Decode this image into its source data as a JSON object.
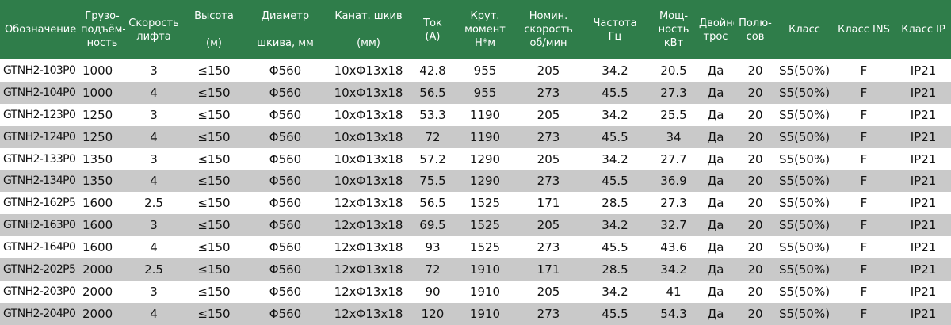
{
  "table": {
    "headers": [
      "Обозначение",
      "Грузо-\nподъём-\nность",
      "Скорость\nлифта",
      "Высота\n\n(м)",
      "Диаметр\n\nшкива, мм",
      "Канат. шкив\n\n(мм)",
      "Ток\n(А)",
      "Крут.\nмомент\nН*м",
      "Номин.\nскорость\nоб/мин",
      "Частота\nГц",
      "Мощ-\nность\nкВт",
      "Двойной\nтрос",
      "Полю-\nсов",
      "Класс",
      "Класс INS",
      "Класс IP"
    ],
    "rows": [
      [
        "GTNH2-103P0",
        "1000",
        "3",
        "≤150",
        "Φ560",
        "10xΦ13x18",
        "42.8",
        "955",
        "205",
        "34.2",
        "20.5",
        "Да",
        "20",
        "S5(50%)",
        "F",
        "IP21"
      ],
      [
        "GTNH2-104P0",
        "1000",
        "4",
        "≤150",
        "Φ560",
        "10xΦ13x18",
        "56.5",
        "955",
        "273",
        "45.5",
        "27.3",
        "Да",
        "20",
        "S5(50%)",
        "F",
        "IP21"
      ],
      [
        "GTNH2-123P0",
        "1250",
        "3",
        "≤150",
        "Φ560",
        "10xΦ13x18",
        "53.3",
        "1190",
        "205",
        "34.2",
        "25.5",
        "Да",
        "20",
        "S5(50%)",
        "F",
        "IP21"
      ],
      [
        "GTNH2-124P0",
        "1250",
        "4",
        "≤150",
        "Φ560",
        "10xΦ13x18",
        "72",
        "1190",
        "273",
        "45.5",
        "34",
        "Да",
        "20",
        "S5(50%)",
        "F",
        "IP21"
      ],
      [
        "GTNH2-133P0",
        "1350",
        "3",
        "≤150",
        "Φ560",
        "10xΦ13x18",
        "57.2",
        "1290",
        "205",
        "34.2",
        "27.7",
        "Да",
        "20",
        "S5(50%)",
        "F",
        "IP21"
      ],
      [
        "GTNH2-134P0",
        "1350",
        "4",
        "≤150",
        "Φ560",
        "10xΦ13x18",
        "75.5",
        "1290",
        "273",
        "45.5",
        "36.9",
        "Да",
        "20",
        "S5(50%)",
        "F",
        "IP21"
      ],
      [
        "GTNH2-162P5",
        "1600",
        "2.5",
        "≤150",
        "Φ560",
        "12xΦ13x18",
        "56.5",
        "1525",
        "171",
        "28.5",
        "27.3",
        "Да",
        "20",
        "S5(50%)",
        "F",
        "IP21"
      ],
      [
        "GTNH2-163P0",
        "1600",
        "3",
        "≤150",
        "Φ560",
        "12xΦ13x18",
        "69.5",
        "1525",
        "205",
        "34.2",
        "32.7",
        "Да",
        "20",
        "S5(50%)",
        "F",
        "IP21"
      ],
      [
        "GTNH2-164P0",
        "1600",
        "4",
        "≤150",
        "Φ560",
        "12xΦ13x18",
        "93",
        "1525",
        "273",
        "45.5",
        "43.6",
        "Да",
        "20",
        "S5(50%)",
        "F",
        "IP21"
      ],
      [
        "GTNH2-202P5",
        "2000",
        "2.5",
        "≤150",
        "Φ560",
        "12xΦ13x18",
        "72",
        "1910",
        "171",
        "28.5",
        "34.2",
        "Да",
        "20",
        "S5(50%)",
        "F",
        "IP21"
      ],
      [
        "GTNH2-203P0",
        "2000",
        "3",
        "≤150",
        "Φ560",
        "12xΦ13x18",
        "90",
        "1910",
        "205",
        "34.2",
        "41",
        "Да",
        "20",
        "S5(50%)",
        "F",
        "IP21"
      ],
      [
        "GTNH2-204P0",
        "2000",
        "4",
        "≤150",
        "Φ560",
        "12xΦ13x18",
        "120",
        "1910",
        "273",
        "45.5",
        "54.3",
        "Да",
        "20",
        "S5(50%)",
        "F",
        "IP21"
      ]
    ]
  },
  "colors": {
    "header_bg": "#2f7d4a",
    "header_text": "#ffffff",
    "row_odd": "#ffffff",
    "row_even": "#c9c9c9"
  }
}
